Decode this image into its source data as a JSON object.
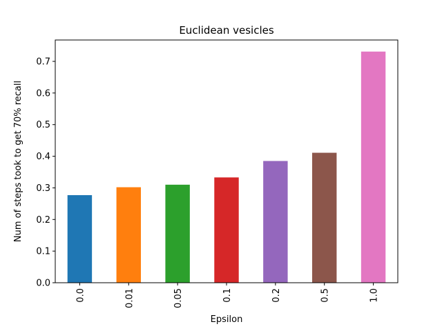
{
  "chart_data": {
    "type": "bar",
    "title": "Euclidean vesicles",
    "xlabel": "Epsilon",
    "ylabel": "Num of steps took to get 70% recall",
    "categories": [
      "0.0",
      "0.01",
      "0.05",
      "0.1",
      "0.2",
      "0.5",
      "1.0"
    ],
    "values": [
      0.277,
      0.302,
      0.31,
      0.333,
      0.385,
      0.411,
      0.731
    ],
    "colors": [
      "#1f77b4",
      "#ff7f0e",
      "#2ca02c",
      "#d62728",
      "#9467bd",
      "#8c564b",
      "#e377c2"
    ],
    "ylim": [
      0,
      0.7676
    ],
    "yticks": [
      "0.0",
      "0.1",
      "0.2",
      "0.3",
      "0.4",
      "0.5",
      "0.6",
      "0.7"
    ],
    "xtick_rotation": "vertical",
    "grid": false,
    "legend": "none"
  }
}
